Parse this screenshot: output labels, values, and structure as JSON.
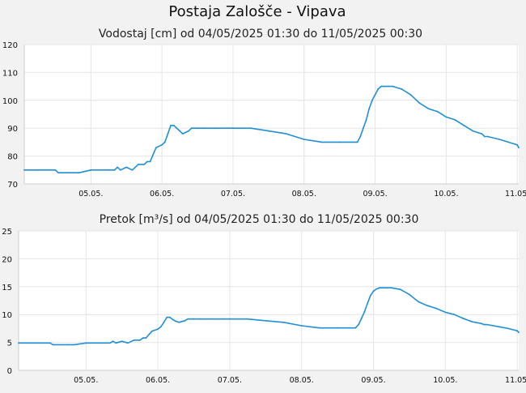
{
  "title": "Postaja Zalošče - Vipava",
  "colors": {
    "background": "#f2f2f2",
    "plot_bg": "#ffffff",
    "line": "#1f8fd6",
    "grid": "#e4e4e4",
    "text": "#111111"
  },
  "chart_data": [
    {
      "type": "line",
      "title": "Vodostaj [cm] od 04/05/2025 01:30 do 11/05/2025 00:30",
      "xlabel": "",
      "ylabel": "",
      "ylim": [
        70,
        120
      ],
      "yticks": [
        "70",
        "80",
        "90",
        "100",
        "110",
        "120"
      ],
      "xlim": [
        "04/05/2025 01:30",
        "11/05/2025 00:30"
      ],
      "xticks": [
        "05.05.",
        "06.05.",
        "07.05.",
        "08.05.",
        "09.05.",
        "10.05.",
        "11.05."
      ],
      "grid": true,
      "series": [
        {
          "x": [
            "04/05/2025 01:30",
            "04/05/2025 06:00",
            "04/05/2025 12:00",
            "04/05/2025 13:00",
            "04/05/2025 18:00",
            "04/05/2025 20:00",
            "05/05/2025 00:00",
            "05/05/2025 08:00",
            "05/05/2025 09:00",
            "05/05/2025 10:00",
            "05/05/2025 12:00",
            "05/05/2025 14:00",
            "05/05/2025 16:00",
            "05/05/2025 18:00",
            "05/05/2025 19:00",
            "05/05/2025 20:00",
            "05/05/2025 22:00",
            "06/05/2025 00:00",
            "06/05/2025 01:00",
            "06/05/2025 02:00",
            "06/05/2025 03:00",
            "06/05/2025 04:00",
            "06/05/2025 05:00",
            "06/05/2025 06:00",
            "06/05/2025 07:00",
            "06/05/2025 09:00",
            "06/05/2025 10:00",
            "06/05/2025 12:00",
            "06/05/2025 14:00",
            "06/05/2025 18:00",
            "06/05/2025 22:00",
            "07/05/2025 00:00",
            "07/05/2025 06:00",
            "07/05/2025 12:00",
            "07/05/2025 18:00",
            "08/05/2025 00:00",
            "08/05/2025 06:00",
            "08/05/2025 12:00",
            "08/05/2025 16:00",
            "08/05/2025 18:00",
            "08/05/2025 19:00",
            "08/05/2025 20:00",
            "08/05/2025 21:00",
            "08/05/2025 22:00",
            "08/05/2025 23:00",
            "09/05/2025 00:00",
            "09/05/2025 01:00",
            "09/05/2025 02:00",
            "09/05/2025 03:00",
            "09/05/2025 06:00",
            "09/05/2025 09:00",
            "09/05/2025 12:00",
            "09/05/2025 15:00",
            "09/05/2025 18:00",
            "09/05/2025 21:00",
            "10/05/2025 00:00",
            "10/05/2025 03:00",
            "10/05/2025 06:00",
            "10/05/2025 09:00",
            "10/05/2025 12:00",
            "10/05/2025 13:00",
            "10/05/2025 14:00",
            "10/05/2025 18:00",
            "10/05/2025 21:00",
            "11/05/2025 00:00",
            "11/05/2025 00:30"
          ],
          "y": [
            75,
            75,
            75,
            74,
            74,
            74,
            75,
            75,
            76,
            75,
            76,
            75,
            77,
            77,
            78,
            78,
            83,
            84,
            85,
            88,
            91,
            91,
            90,
            89,
            88,
            89,
            90,
            90,
            90,
            90,
            90,
            90,
            90,
            89,
            88,
            86,
            85,
            85,
            85,
            85,
            87,
            90,
            93,
            97,
            100,
            102,
            104,
            105,
            105,
            105,
            104,
            102,
            99,
            97,
            96,
            94,
            93,
            91,
            89,
            88,
            87,
            87,
            86,
            85,
            84,
            83
          ]
        }
      ]
    },
    {
      "type": "line",
      "title": "Pretok [m³/s] od 04/05/2025 01:30 do 11/05/2025 00:30",
      "xlabel": "",
      "ylabel": "",
      "ylim": [
        0,
        25
      ],
      "yticks": [
        "0",
        "5",
        "10",
        "15",
        "20",
        "25"
      ],
      "xlim": [
        "04/05/2025 01:30",
        "11/05/2025 00:30"
      ],
      "xticks": [
        "05.05.",
        "06.05.",
        "07.05.",
        "08.05.",
        "09.05.",
        "10.05.",
        "11.05."
      ],
      "grid": true,
      "series": [
        {
          "x": [
            "04/05/2025 01:30",
            "04/05/2025 06:00",
            "04/05/2025 12:00",
            "04/05/2025 13:00",
            "04/05/2025 18:00",
            "04/05/2025 20:00",
            "05/05/2025 00:00",
            "05/05/2025 08:00",
            "05/05/2025 09:00",
            "05/05/2025 10:00",
            "05/05/2025 12:00",
            "05/05/2025 14:00",
            "05/05/2025 16:00",
            "05/05/2025 18:00",
            "05/05/2025 19:00",
            "05/05/2025 20:00",
            "05/05/2025 22:00",
            "06/05/2025 00:00",
            "06/05/2025 01:00",
            "06/05/2025 02:00",
            "06/05/2025 03:00",
            "06/05/2025 04:00",
            "06/05/2025 05:00",
            "06/05/2025 06:00",
            "06/05/2025 07:00",
            "06/05/2025 09:00",
            "06/05/2025 10:00",
            "06/05/2025 12:00",
            "06/05/2025 14:00",
            "06/05/2025 18:00",
            "06/05/2025 22:00",
            "07/05/2025 00:00",
            "07/05/2025 06:00",
            "07/05/2025 12:00",
            "07/05/2025 18:00",
            "08/05/2025 00:00",
            "08/05/2025 06:00",
            "08/05/2025 12:00",
            "08/05/2025 16:00",
            "08/05/2025 18:00",
            "08/05/2025 19:00",
            "08/05/2025 20:00",
            "08/05/2025 21:00",
            "08/05/2025 22:00",
            "08/05/2025 23:00",
            "09/05/2025 00:00",
            "09/05/2025 01:00",
            "09/05/2025 02:00",
            "09/05/2025 03:00",
            "09/05/2025 06:00",
            "09/05/2025 09:00",
            "09/05/2025 12:00",
            "09/05/2025 15:00",
            "09/05/2025 18:00",
            "09/05/2025 21:00",
            "10/05/2025 00:00",
            "10/05/2025 03:00",
            "10/05/2025 06:00",
            "10/05/2025 09:00",
            "10/05/2025 12:00",
            "10/05/2025 13:00",
            "10/05/2025 14:00",
            "10/05/2025 18:00",
            "10/05/2025 21:00",
            "11/05/2025 00:00",
            "11/05/2025 00:30"
          ],
          "y": [
            4.9,
            4.9,
            4.9,
            4.6,
            4.6,
            4.6,
            4.9,
            4.9,
            5.2,
            4.9,
            5.2,
            4.9,
            5.4,
            5.4,
            5.8,
            5.8,
            7.0,
            7.4,
            7.8,
            8.6,
            9.5,
            9.5,
            9.1,
            8.8,
            8.6,
            8.9,
            9.2,
            9.2,
            9.2,
            9.2,
            9.2,
            9.2,
            9.2,
            8.9,
            8.6,
            8.0,
            7.6,
            7.6,
            7.6,
            7.6,
            8.2,
            9.3,
            10.5,
            12.0,
            13.4,
            14.2,
            14.6,
            14.8,
            14.8,
            14.8,
            14.5,
            13.6,
            12.3,
            11.6,
            11.1,
            10.4,
            10.0,
            9.3,
            8.7,
            8.4,
            8.2,
            8.2,
            7.8,
            7.5,
            7.1,
            6.8
          ]
        }
      ]
    }
  ]
}
